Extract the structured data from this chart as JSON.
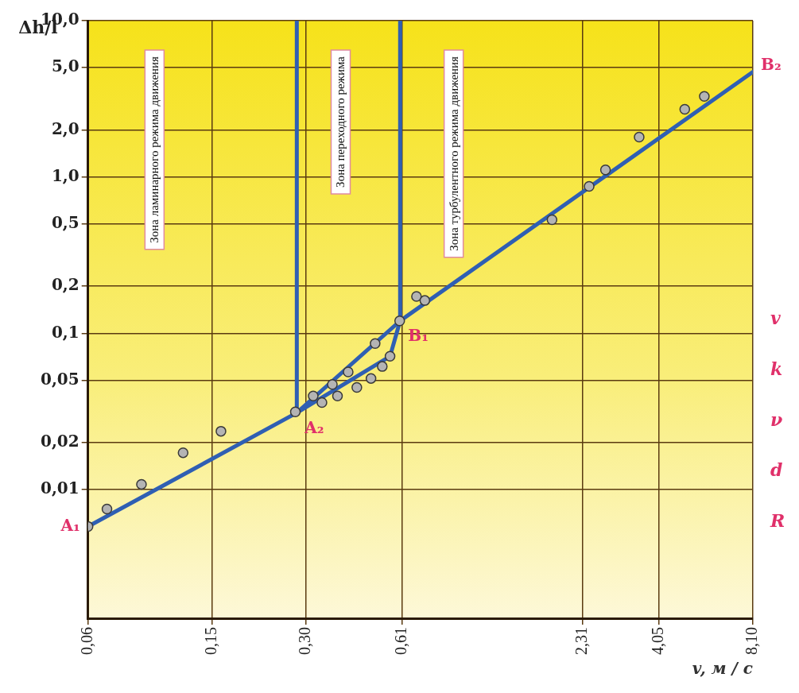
{
  "chart_data": {
    "type": "scatter",
    "xlabel": "v, м / с",
    "ylabel": "Δh/l",
    "log": "xy",
    "grid": true,
    "legend": false,
    "xlim": [
      0.06,
      8.1
    ],
    "xticks": [
      {
        "value": 0.06,
        "label": "0,06"
      },
      {
        "value": 0.15,
        "label": "0,15"
      },
      {
        "value": 0.3,
        "label": "0,30"
      },
      {
        "value": 0.61,
        "label": "0,61"
      },
      {
        "value": 2.31,
        "label": "2,31"
      },
      {
        "value": 4.05,
        "label": "4,05"
      },
      {
        "value": 8.1,
        "label": "8,10"
      }
    ],
    "ylim": [
      0.0015,
      10
    ],
    "yticks": [
      {
        "value": 0.01,
        "label": "0,01"
      },
      {
        "value": 0.02,
        "label": "0,02"
      },
      {
        "value": 0.05,
        "label": "0,05"
      },
      {
        "value": 0.1,
        "label": "0,1"
      },
      {
        "value": 0.2,
        "label": "0,2"
      },
      {
        "value": 0.5,
        "label": "0,5"
      },
      {
        "value": 1,
        "label": "1,0"
      },
      {
        "value": 2,
        "label": "2,0"
      },
      {
        "value": 5,
        "label": "5,0"
      },
      {
        "value": 10,
        "label": "10,0"
      }
    ],
    "series": [
      {
        "type": "scatter",
        "marker": "circle",
        "color": "#b4b4b4",
        "x": [
          0.06,
          0.069,
          0.089,
          0.121,
          0.16,
          0.277,
          0.316,
          0.337,
          0.364,
          0.378,
          0.409,
          0.436,
          0.484,
          0.499,
          0.526,
          0.557,
          0.598,
          0.677,
          0.72,
          1.84,
          2.42,
          2.73,
          3.5,
          4.9,
          5.66
        ],
        "values": [
          0.0058,
          0.0075,
          0.0108,
          0.0172,
          0.0236,
          0.0314,
          0.0397,
          0.036,
          0.047,
          0.0397,
          0.0565,
          0.045,
          0.0514,
          0.086,
          0.0613,
          0.0712,
          0.12,
          0.172,
          0.162,
          0.532,
          0.871,
          1.11,
          1.8,
          2.71,
          3.28
        ]
      },
      {
        "type": "line",
        "marker": "none",
        "color": "#2f5fb3",
        "x": [
          0.06,
          0.28
        ],
        "values": [
          0.0058,
          0.031
        ]
      },
      {
        "type": "line",
        "marker": "none",
        "color": "#2f5fb3",
        "x": [
          0.28,
          0.6,
          8.1
        ],
        "values": [
          0.031,
          0.12,
          4.7
        ]
      },
      {
        "type": "line",
        "marker": "none",
        "color": "#2f5fb3",
        "x": [
          0.28,
          0.557,
          0.6
        ],
        "values": [
          0.031,
          0.0712,
          0.12
        ]
      },
      {
        "type": "line",
        "marker": "none",
        "color": "#2f5fb3",
        "x": [
          0.28,
          0.28
        ],
        "values": [
          0.031,
          10
        ]
      },
      {
        "type": "line",
        "marker": "none",
        "color": "#2f5fb3",
        "x": [
          0.6,
          0.6
        ],
        "values": [
          0.12,
          10
        ]
      }
    ],
    "annotations": [
      "Зона ламинарного режима движения",
      "Зона переходного режима",
      "Зона турбулентного режима движения",
      {
        "text": "A₁",
        "x": 0.06,
        "y": 0.0058
      },
      {
        "text": "A₂",
        "x": 0.28,
        "y": 0.031
      },
      {
        "text": "B₁",
        "x": 0.6,
        "y": 0.12
      },
      {
        "text": "B₂",
        "x": 8.1,
        "y": 4.7
      },
      "v",
      "k",
      "ν",
      "d",
      "R"
    ]
  }
}
